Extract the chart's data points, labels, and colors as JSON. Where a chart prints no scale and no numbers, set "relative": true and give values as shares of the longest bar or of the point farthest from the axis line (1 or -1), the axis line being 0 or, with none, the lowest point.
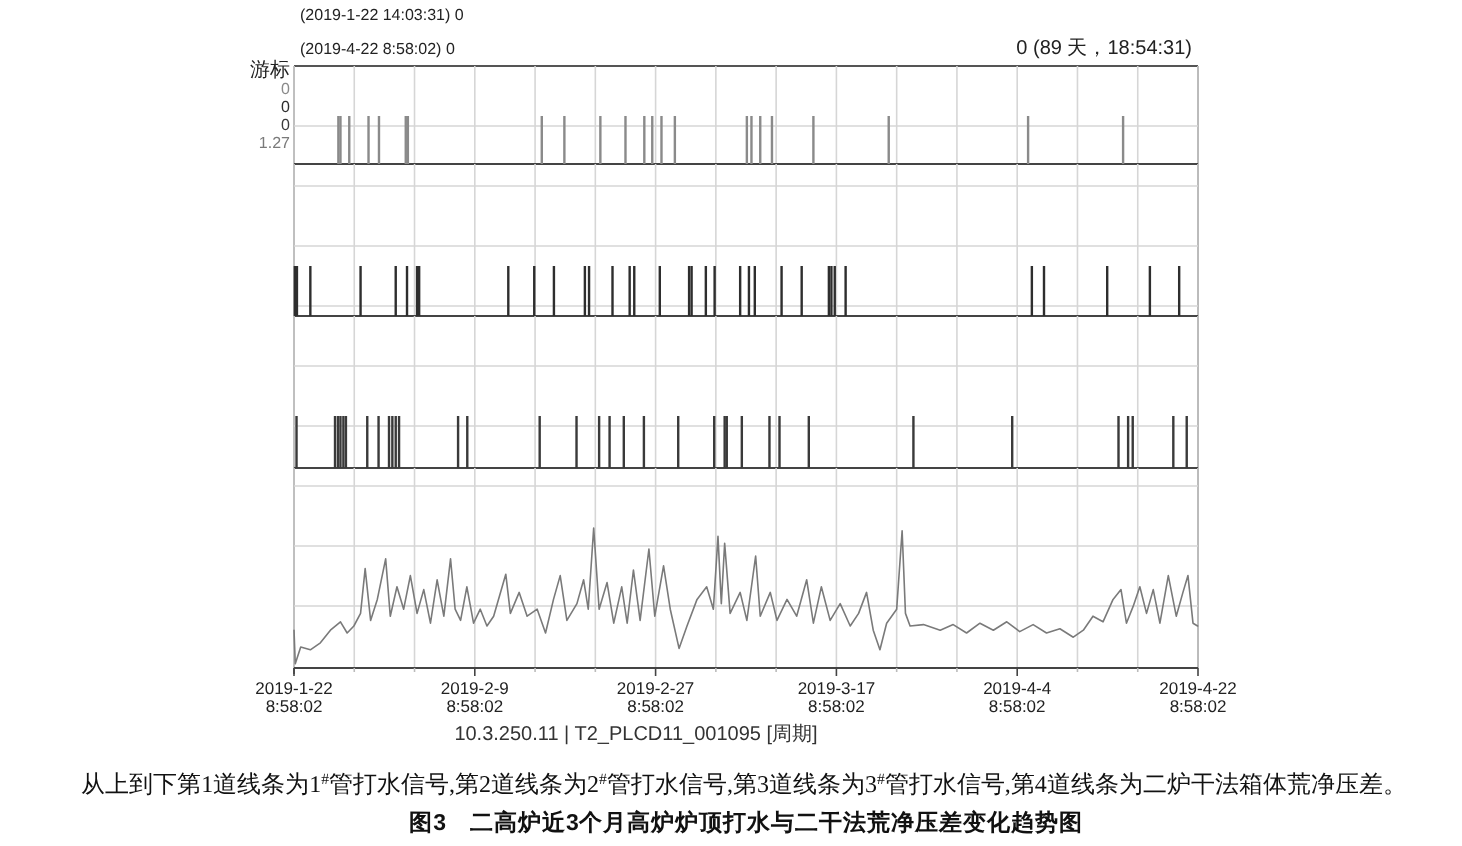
{
  "chart_data": [
    {
      "type": "bar",
      "relative": true,
      "color": "#8a8a8a",
      "grid": true,
      "tick_labels": false,
      "xlim": [
        "2019-01-22T08:58",
        "2019-04-22T08:58"
      ],
      "xticks": [
        {
          "value": "2019-01-22T08:58",
          "label": null
        },
        {
          "value": "2019-01-28T08:58",
          "label": null
        },
        {
          "value": "2019-02-03T08:58",
          "label": null
        },
        {
          "value": "2019-02-09T08:58",
          "label": null
        },
        {
          "value": "2019-02-15T08:58",
          "label": null
        },
        {
          "value": "2019-02-21T08:58",
          "label": null
        },
        {
          "value": "2019-02-27T08:58",
          "label": null
        },
        {
          "value": "2019-03-05T08:58",
          "label": null
        },
        {
          "value": "2019-03-11T08:58",
          "label": null
        },
        {
          "value": "2019-03-17T08:58",
          "label": null
        },
        {
          "value": "2019-03-23T08:58",
          "label": null
        },
        {
          "value": "2019-03-29T08:58",
          "label": null
        },
        {
          "value": "2019-04-04T08:58",
          "label": null
        },
        {
          "value": "2019-04-10T08:58",
          "label": null
        },
        {
          "value": "2019-04-16T08:58",
          "label": null
        },
        {
          "value": "2019-04-22T08:58",
          "label": null
        }
      ],
      "x": [
        "2019-01-26T19:00",
        "2019-01-27T00:00",
        "2019-01-27T21:00",
        "2019-01-29T19:00",
        "2019-01-30T20:00",
        "2019-02-02T12:00",
        "2019-02-02T17:00",
        "2019-02-16T01:00",
        "2019-02-18T07:00",
        "2019-02-21T21:00",
        "2019-02-24T09:00",
        "2019-02-26T06:00",
        "2019-02-27T01:00",
        "2019-02-27T23:00",
        "2019-03-01T07:00",
        "2019-03-08T11:00",
        "2019-03-08T22:00",
        "2019-03-09T19:00",
        "2019-03-10T23:00",
        "2019-03-15T02:00",
        "2019-03-22T14:00",
        "2019-04-05T11:00",
        "2019-04-14T22:00"
      ],
      "values": [
        1,
        1,
        1,
        1,
        1,
        1,
        1,
        1,
        1,
        1,
        1,
        1,
        1,
        1,
        1,
        1,
        1,
        1,
        1,
        1,
        1,
        1,
        1
      ],
      "annotations": [
        "(2019-1-22 14:03:31) 0",
        "(2019-4-22 8:58:02) 0",
        "0 (89 天，18:54:31)",
        "游标",
        "0",
        "0",
        "0",
        "1.27"
      ]
    },
    {
      "type": "bar",
      "relative": true,
      "color": "#2e2e2e",
      "grid": true,
      "tick_labels": false,
      "xlim": [
        "2019-01-22T08:58",
        "2019-04-22T08:58"
      ],
      "xticks": [
        {
          "value": "2019-01-22T08:58",
          "label": null
        },
        {
          "value": "2019-01-28T08:58",
          "label": null
        },
        {
          "value": "2019-02-03T08:58",
          "label": null
        },
        {
          "value": "2019-02-09T08:58",
          "label": null
        },
        {
          "value": "2019-02-15T08:58",
          "label": null
        },
        {
          "value": "2019-02-21T08:58",
          "label": null
        },
        {
          "value": "2019-02-27T08:58",
          "label": null
        },
        {
          "value": "2019-03-05T08:58",
          "label": null
        },
        {
          "value": "2019-03-11T08:58",
          "label": null
        },
        {
          "value": "2019-03-17T08:58",
          "label": null
        },
        {
          "value": "2019-03-23T08:58",
          "label": null
        },
        {
          "value": "2019-03-29T08:58",
          "label": null
        },
        {
          "value": "2019-04-04T08:58",
          "label": null
        },
        {
          "value": "2019-04-10T08:58",
          "label": null
        },
        {
          "value": "2019-04-16T08:58",
          "label": null
        },
        {
          "value": "2019-04-22T08:58",
          "label": null
        }
      ],
      "x": [
        "2019-01-22T11:00",
        "2019-01-22T16:00",
        "2019-01-24T00:00",
        "2019-01-29T00:00",
        "2019-02-01T12:00",
        "2019-02-02T15:00",
        "2019-02-03T15:00",
        "2019-02-03T20:00",
        "2019-02-12T17:00",
        "2019-02-15T07:00",
        "2019-02-17T06:00",
        "2019-02-20T08:00",
        "2019-02-20T18:00",
        "2019-02-23T02:00",
        "2019-02-24T19:00",
        "2019-02-25T06:00",
        "2019-02-27T19:00",
        "2019-03-02T17:00",
        "2019-03-02T23:00",
        "2019-03-04T09:00",
        "2019-03-05T06:00",
        "2019-03-07T19:00",
        "2019-03-08T16:00",
        "2019-03-09T06:00",
        "2019-03-11T22:00",
        "2019-03-13T22:00",
        "2019-03-16T15:00",
        "2019-03-16T21:00",
        "2019-03-17T05:00",
        "2019-03-18T07:00",
        "2019-04-05T20:00",
        "2019-04-07T01:00",
        "2019-04-13T08:00",
        "2019-04-17T14:00",
        "2019-04-20T12:00"
      ],
      "values": [
        1,
        1,
        1,
        1,
        1,
        1,
        1,
        1,
        1,
        1,
        1,
        1,
        1,
        1,
        1,
        1,
        1,
        1,
        1,
        1,
        1,
        1,
        1,
        1,
        1,
        1,
        1,
        1,
        1,
        1,
        1,
        1,
        1,
        1,
        1
      ]
    },
    {
      "type": "bar",
      "relative": true,
      "color": "#3a3a3a",
      "grid": true,
      "tick_labels": false,
      "xlim": [
        "2019-01-22T08:58",
        "2019-04-22T08:58"
      ],
      "xticks": [
        {
          "value": "2019-01-22T08:58",
          "label": null
        },
        {
          "value": "2019-01-28T08:58",
          "label": null
        },
        {
          "value": "2019-02-03T08:58",
          "label": null
        },
        {
          "value": "2019-02-09T08:58",
          "label": null
        },
        {
          "value": "2019-02-15T08:58",
          "label": null
        },
        {
          "value": "2019-02-21T08:58",
          "label": null
        },
        {
          "value": "2019-02-27T08:58",
          "label": null
        },
        {
          "value": "2019-03-05T08:58",
          "label": null
        },
        {
          "value": "2019-03-11T08:58",
          "label": null
        },
        {
          "value": "2019-03-17T08:58",
          "label": null
        },
        {
          "value": "2019-03-23T08:58",
          "label": null
        },
        {
          "value": "2019-03-29T08:58",
          "label": null
        },
        {
          "value": "2019-04-04T08:58",
          "label": null
        },
        {
          "value": "2019-04-10T08:58",
          "label": null
        },
        {
          "value": "2019-04-16T08:58",
          "label": null
        },
        {
          "value": "2019-04-22T08:58",
          "label": null
        }
      ],
      "x": [
        "2019-01-22T15:00",
        "2019-01-26T11:00",
        "2019-01-26T18:00",
        "2019-01-27T00:00",
        "2019-01-27T07:00",
        "2019-01-27T13:00",
        "2019-01-29T16:00",
        "2019-01-30T19:00",
        "2019-01-31T20:00",
        "2019-02-01T04:00",
        "2019-02-01T12:00",
        "2019-02-01T20:00",
        "2019-02-07T17:00",
        "2019-02-08T15:00",
        "2019-02-15T20:00",
        "2019-02-19T12:00",
        "2019-02-21T18:00",
        "2019-02-22T19:00",
        "2019-02-24T05:00",
        "2019-02-26T05:00",
        "2019-03-01T15:00",
        "2019-03-05T05:00",
        "2019-03-06T06:00",
        "2019-03-06T11:00",
        "2019-03-07T23:00",
        "2019-03-10T17:00",
        "2019-03-11T17:00",
        "2019-03-14T15:00",
        "2019-03-25T01:00",
        "2019-04-03T21:00",
        "2019-04-14T11:00",
        "2019-04-15T10:00",
        "2019-04-15T21:00",
        "2019-04-19T22:00",
        "2019-04-21T06:00"
      ],
      "values": [
        1,
        1,
        1,
        1,
        1,
        1,
        1,
        1,
        1,
        1,
        1,
        1,
        1,
        1,
        1,
        1,
        1,
        1,
        1,
        1,
        1,
        1,
        1,
        1,
        1,
        1,
        1,
        1,
        1,
        1,
        1,
        1,
        1,
        1,
        1
      ]
    },
    {
      "type": "line",
      "relative": true,
      "color": "#7a7a7a",
      "grid": true,
      "title": "图3　二高炉近3个月高炉炉顶打水与二干法荒净压差变化趋势图",
      "xlabel": "10.3.250.11 | T2_PLCD11_001095 [周期]",
      "annotations": [
        "从上到下第1道线条为1$^{#}$管打水信号,第2道线条为2$^{#}$管打水信号,第3道线条为3$^{#}$管打水信号,第4道线条为二炉干法箱体荒净压差。"
      ],
      "xlim": [
        "2019-01-22T08:58",
        "2019-04-22T08:58"
      ],
      "xticks": [
        {
          "value": "2019-01-22T08:58",
          "label": "2019-1-22 8:58:02"
        },
        {
          "value": "2019-01-28T08:58",
          "label": null
        },
        {
          "value": "2019-02-03T08:58",
          "label": null
        },
        {
          "value": "2019-02-09T08:58",
          "label": "2019-2-9 8:58:02"
        },
        {
          "value": "2019-02-15T08:58",
          "label": null
        },
        {
          "value": "2019-02-21T08:58",
          "label": null
        },
        {
          "value": "2019-02-27T08:58",
          "label": "2019-2-27 8:58:02"
        },
        {
          "value": "2019-03-05T08:58",
          "label": null
        },
        {
          "value": "2019-03-11T08:58",
          "label": null
        },
        {
          "value": "2019-03-17T08:58",
          "label": "2019-3-17 8:58:02"
        },
        {
          "value": "2019-03-23T08:58",
          "label": null
        },
        {
          "value": "2019-03-29T08:58",
          "label": null
        },
        {
          "value": "2019-04-04T08:58",
          "label": "2019-4-4 8:58:02"
        },
        {
          "value": "2019-04-10T08:58",
          "label": null
        },
        {
          "value": "2019-04-16T08:58",
          "label": null
        },
        {
          "value": "2019-04-22T08:58",
          "label": "2019-4-22 8:58:02"
        }
      ],
      "x": [
        "2019-01-22T09:00",
        "2019-01-22T12:00",
        "2019-01-23T01:00",
        "2019-01-24T00:00",
        "2019-01-25T00:00",
        "2019-01-26T00:00",
        "2019-01-27T00:00",
        "2019-01-27T16:00",
        "2019-01-28T08:00",
        "2019-01-29T00:00",
        "2019-01-29T11:00",
        "2019-01-30T00:00",
        "2019-01-30T16:00",
        "2019-01-31T12:00",
        "2019-01-31T23:00",
        "2019-02-01T15:00",
        "2019-02-02T07:00",
        "2019-02-02T23:00",
        "2019-02-03T15:00",
        "2019-02-04T07:00",
        "2019-02-04T23:00",
        "2019-02-05T15:00",
        "2019-02-06T07:00",
        "2019-02-06T23:00",
        "2019-02-07T10:00",
        "2019-02-07T23:00",
        "2019-02-08T14:00",
        "2019-02-09T06:00",
        "2019-02-09T22:00",
        "2019-02-10T14:00",
        "2019-02-11T06:00",
        "2019-02-12T11:00",
        "2019-02-12T22:00",
        "2019-02-13T19:00",
        "2019-02-14T14:00",
        "2019-02-15T14:00",
        "2019-02-16T10:00",
        "2019-02-17T05:00",
        "2019-02-17T21:00",
        "2019-02-18T13:00",
        "2019-02-19T13:00",
        "2019-02-20T05:00",
        "2019-02-20T16:00",
        "2019-02-21T05:00",
        "2019-02-21T18:00",
        "2019-02-22T13:00",
        "2019-02-23T05:00",
        "2019-02-24T00:00",
        "2019-02-24T13:00",
        "2019-02-25T04:00",
        "2019-02-25T20:00",
        "2019-02-26T17:00",
        "2019-02-27T07:00",
        "2019-02-28T04:00",
        "2019-02-28T20:00",
        "2019-03-01T17:00",
        "2019-03-02T12:00",
        "2019-03-03T12:00",
        "2019-03-04T11:00",
        "2019-03-05T03:00",
        "2019-03-05T14:00",
        "2019-03-05T22:00",
        "2019-03-06T06:00",
        "2019-03-06T19:00",
        "2019-03-07T19:00",
        "2019-03-08T11:00",
        "2019-03-09T08:00",
        "2019-03-09T19:00",
        "2019-03-10T19:00",
        "2019-03-11T11:00",
        "2019-03-12T11:00",
        "2019-03-13T10:00",
        "2019-03-14T10:00",
        "2019-03-15T02:00",
        "2019-03-15T21:00",
        "2019-03-16T18:00",
        "2019-03-17T18:00",
        "2019-03-18T18:00",
        "2019-03-19T14:00",
        "2019-03-20T09:00",
        "2019-03-21T01:00",
        "2019-03-21T17:00",
        "2019-03-22T09:00",
        "2019-03-23T09:00",
        "2019-03-23T22:00",
        "2019-03-24T06:00",
        "2019-03-24T17:00",
        "2019-03-26T01:00",
        "2019-03-27T17:00",
        "2019-03-29T00:00",
        "2019-03-30T08:00",
        "2019-03-31T16:00",
        "2019-04-02T00:00",
        "2019-04-03T08:00",
        "2019-04-04T15:00",
        "2019-04-05T23:00",
        "2019-04-07T07:00",
        "2019-04-08T15:00",
        "2019-04-09T23:00",
        "2019-04-10T23:00",
        "2019-04-11T22:00",
        "2019-04-12T22:00",
        "2019-04-13T22:00",
        "2019-04-14T17:00",
        "2019-04-15T06:00",
        "2019-04-15T22:00",
        "2019-04-16T14:00",
        "2019-04-17T06:00",
        "2019-04-17T22:00",
        "2019-04-18T14:00",
        "2019-04-19T10:00",
        "2019-04-20T05:00",
        "2019-04-20T21:00",
        "2019-04-21T09:00",
        "2019-04-21T21:00",
        "2019-04-22T08:00"
      ],
      "values": [
        0.27,
        0.03,
        0.15,
        0.13,
        0.18,
        0.27,
        0.33,
        0.25,
        0.3,
        0.39,
        0.71,
        0.34,
        0.49,
        0.78,
        0.37,
        0.58,
        0.42,
        0.66,
        0.39,
        0.56,
        0.32,
        0.63,
        0.37,
        0.78,
        0.42,
        0.34,
        0.58,
        0.32,
        0.42,
        0.3,
        0.37,
        0.67,
        0.39,
        0.54,
        0.37,
        0.42,
        0.25,
        0.49,
        0.66,
        0.34,
        0.46,
        0.63,
        0.42,
        1,
        0.42,
        0.61,
        0.32,
        0.58,
        0.32,
        0.7,
        0.34,
        0.85,
        0.37,
        0.73,
        0.42,
        0.14,
        0.3,
        0.49,
        0.58,
        0.42,
        0.94,
        0.46,
        0.89,
        0.39,
        0.54,
        0.34,
        0.8,
        0.37,
        0.54,
        0.34,
        0.49,
        0.37,
        0.63,
        0.32,
        0.58,
        0.34,
        0.46,
        0.3,
        0.39,
        0.54,
        0.27,
        0.13,
        0.32,
        0.42,
        0.98,
        0.39,
        0.3,
        0.31,
        0.27,
        0.31,
        0.25,
        0.32,
        0.27,
        0.33,
        0.26,
        0.31,
        0.25,
        0.28,
        0.22,
        0.27,
        0.37,
        0.33,
        0.49,
        0.56,
        0.32,
        0.44,
        0.58,
        0.39,
        0.56,
        0.32,
        0.66,
        0.37,
        0.54,
        0.66,
        0.32,
        0.3
      ]
    }
  ]
}
